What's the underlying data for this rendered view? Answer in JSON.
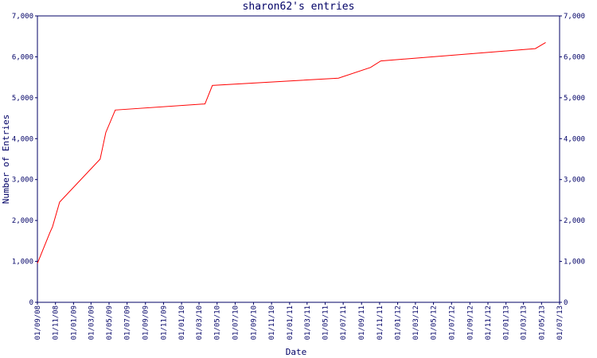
{
  "chart_data": {
    "type": "line",
    "title": "sharon62's entries",
    "x_label": "Date",
    "y_label": "Number of Entries",
    "x": [
      "2008-09-01",
      "2008-10-13",
      "2008-10-22",
      "2008-11-15",
      "2009-04-01",
      "2009-04-20",
      "2009-05-22",
      "2010-03-21",
      "2010-04-15",
      "2011-06-15",
      "2011-10-01",
      "2011-11-05",
      "2013-04-10",
      "2013-05-15"
    ],
    "series": [
      {
        "name": "Entries",
        "color": "#ff0000",
        "values": [
          950,
          1700,
          1850,
          2450,
          3500,
          4150,
          4700,
          4850,
          5300,
          5480,
          5740,
          5900,
          6200,
          6350
        ]
      }
    ],
    "xlim": [
      "2008-09-01",
      "2013-07-01"
    ],
    "xticks": [
      {
        "value": "2008-09-01",
        "label": "01/09/08"
      },
      {
        "value": "2008-11-01",
        "label": "01/11/08"
      },
      {
        "value": "2009-01-01",
        "label": "01/01/09"
      },
      {
        "value": "2009-03-01",
        "label": "01/03/09"
      },
      {
        "value": "2009-05-01",
        "label": "01/05/09"
      },
      {
        "value": "2009-07-01",
        "label": "01/07/09"
      },
      {
        "value": "2009-09-01",
        "label": "01/09/09"
      },
      {
        "value": "2009-11-01",
        "label": "01/11/09"
      },
      {
        "value": "2010-01-01",
        "label": "01/01/10"
      },
      {
        "value": "2010-03-01",
        "label": "01/03/10"
      },
      {
        "value": "2010-05-01",
        "label": "01/05/10"
      },
      {
        "value": "2010-07-01",
        "label": "01/07/10"
      },
      {
        "value": "2010-09-01",
        "label": "01/09/10"
      },
      {
        "value": "2010-11-01",
        "label": "01/11/10"
      },
      {
        "value": "2011-01-01",
        "label": "01/01/11"
      },
      {
        "value": "2011-03-01",
        "label": "01/03/11"
      },
      {
        "value": "2011-05-01",
        "label": "01/05/11"
      },
      {
        "value": "2011-07-01",
        "label": "01/07/11"
      },
      {
        "value": "2011-09-01",
        "label": "01/09/11"
      },
      {
        "value": "2011-11-01",
        "label": "01/11/11"
      },
      {
        "value": "2012-01-01",
        "label": "01/01/12"
      },
      {
        "value": "2012-03-01",
        "label": "01/03/12"
      },
      {
        "value": "2012-05-01",
        "label": "01/05/12"
      },
      {
        "value": "2012-07-01",
        "label": "01/07/12"
      },
      {
        "value": "2012-09-01",
        "label": "01/09/12"
      },
      {
        "value": "2012-11-01",
        "label": "01/11/12"
      },
      {
        "value": "2013-01-01",
        "label": "01/01/13"
      },
      {
        "value": "2013-03-01",
        "label": "01/03/13"
      },
      {
        "value": "2013-05-01",
        "label": "01/05/13"
      },
      {
        "value": "2013-07-01",
        "label": "01/07/13"
      }
    ],
    "ylim": [
      0,
      7000
    ],
    "yticks": [
      0,
      {
        "value": 1000,
        "label": "1,000"
      },
      {
        "value": 2000,
        "label": "2,000"
      },
      {
        "value": 3000,
        "label": "3,000"
      },
      {
        "value": 4000,
        "label": "4,000"
      },
      {
        "value": 5000,
        "label": "5,000"
      },
      {
        "value": 6000,
        "label": "6,000"
      },
      {
        "value": 7000,
        "label": "7,000"
      }
    ],
    "y_labels_both_sides": true
  }
}
